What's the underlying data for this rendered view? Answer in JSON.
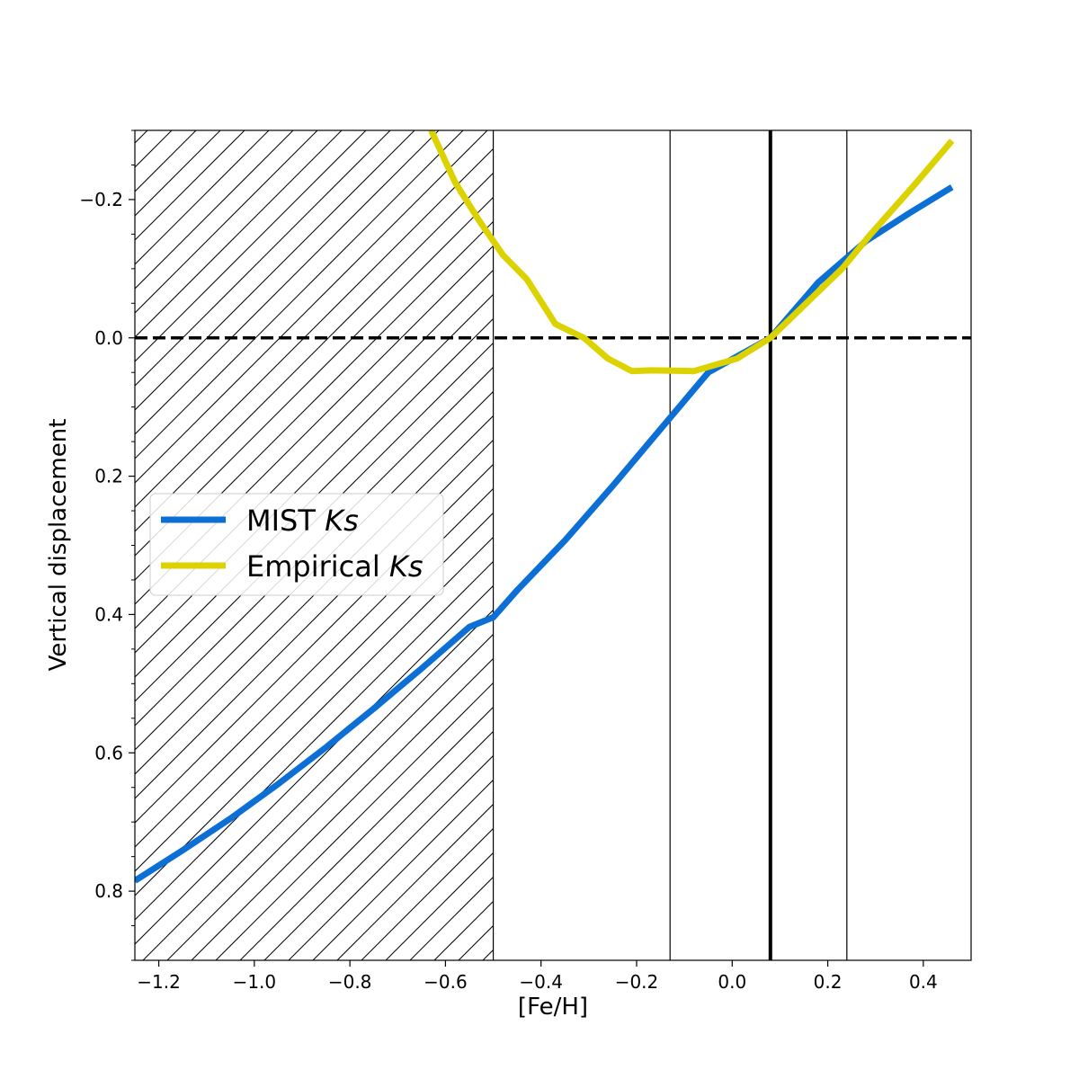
{
  "chart_data": {
    "type": "line",
    "xlabel": "[Fe/H]",
    "ylabel": "Vertical displacement",
    "xlim": [
      -1.25,
      0.5
    ],
    "ylim": [
      0.9,
      -0.3
    ],
    "y_inverted": true,
    "grid": false,
    "legend_placement": "center-left",
    "xticks": [
      -1.2,
      -1.0,
      -0.8,
      -0.6,
      -0.4,
      -0.2,
      0.0,
      0.2,
      0.4
    ],
    "xtick_labels": [
      "−1.2",
      "−1.0",
      "−0.8",
      "−0.6",
      "−0.4",
      "−0.2",
      "0.0",
      "0.2",
      "0.4"
    ],
    "yticks": [
      -0.2,
      0.0,
      0.2,
      0.4,
      0.6,
      0.8
    ],
    "ytick_labels": [
      "−0.2",
      "0.0",
      "0.2",
      "0.4",
      "0.6",
      "0.8"
    ],
    "hatched_region": {
      "x": [
        -1.25,
        -0.5
      ]
    },
    "vertical_lines": [
      {
        "x": -0.5,
        "style": "thin"
      },
      {
        "x": -0.13,
        "style": "thin"
      },
      {
        "x": 0.08,
        "style": "thick"
      },
      {
        "x": 0.24,
        "style": "thin"
      }
    ],
    "horizontal_lines": [
      {
        "y": 0.0,
        "style": "dashed"
      }
    ],
    "series": [
      {
        "name": "MIST Ks",
        "legend_prefix": "MIST ",
        "legend_italic": "Ks",
        "color": "#0b6fd6",
        "x": [
          -1.25,
          -1.15,
          -1.05,
          -0.95,
          -0.85,
          -0.75,
          -0.65,
          -0.55,
          -0.5,
          -0.45,
          -0.35,
          -0.25,
          -0.15,
          -0.05,
          0.08,
          0.18,
          0.28,
          0.37,
          0.46
        ],
        "y": [
          0.785,
          0.741,
          0.695,
          0.645,
          0.592,
          0.536,
          0.478,
          0.418,
          0.404,
          0.365,
          0.293,
          0.214,
          0.132,
          0.05,
          0.0,
          -0.08,
          -0.14,
          -0.18,
          -0.218
        ]
      },
      {
        "name": "Empirical Ks",
        "legend_prefix": "Empirical ",
        "legend_italic": "Ks",
        "color": "#dcd200",
        "x": [
          -0.63,
          -0.58,
          -0.53,
          -0.48,
          -0.43,
          -0.37,
          -0.31,
          -0.26,
          -0.21,
          -0.17,
          -0.08,
          0.01,
          0.08,
          0.17,
          0.23,
          0.29,
          0.38,
          0.46
        ],
        "y": [
          -0.3,
          -0.225,
          -0.17,
          -0.12,
          -0.085,
          -0.02,
          0.0,
          0.03,
          0.048,
          0.047,
          0.048,
          0.03,
          0.0,
          -0.06,
          -0.1,
          -0.15,
          -0.22,
          -0.285
        ]
      }
    ]
  }
}
